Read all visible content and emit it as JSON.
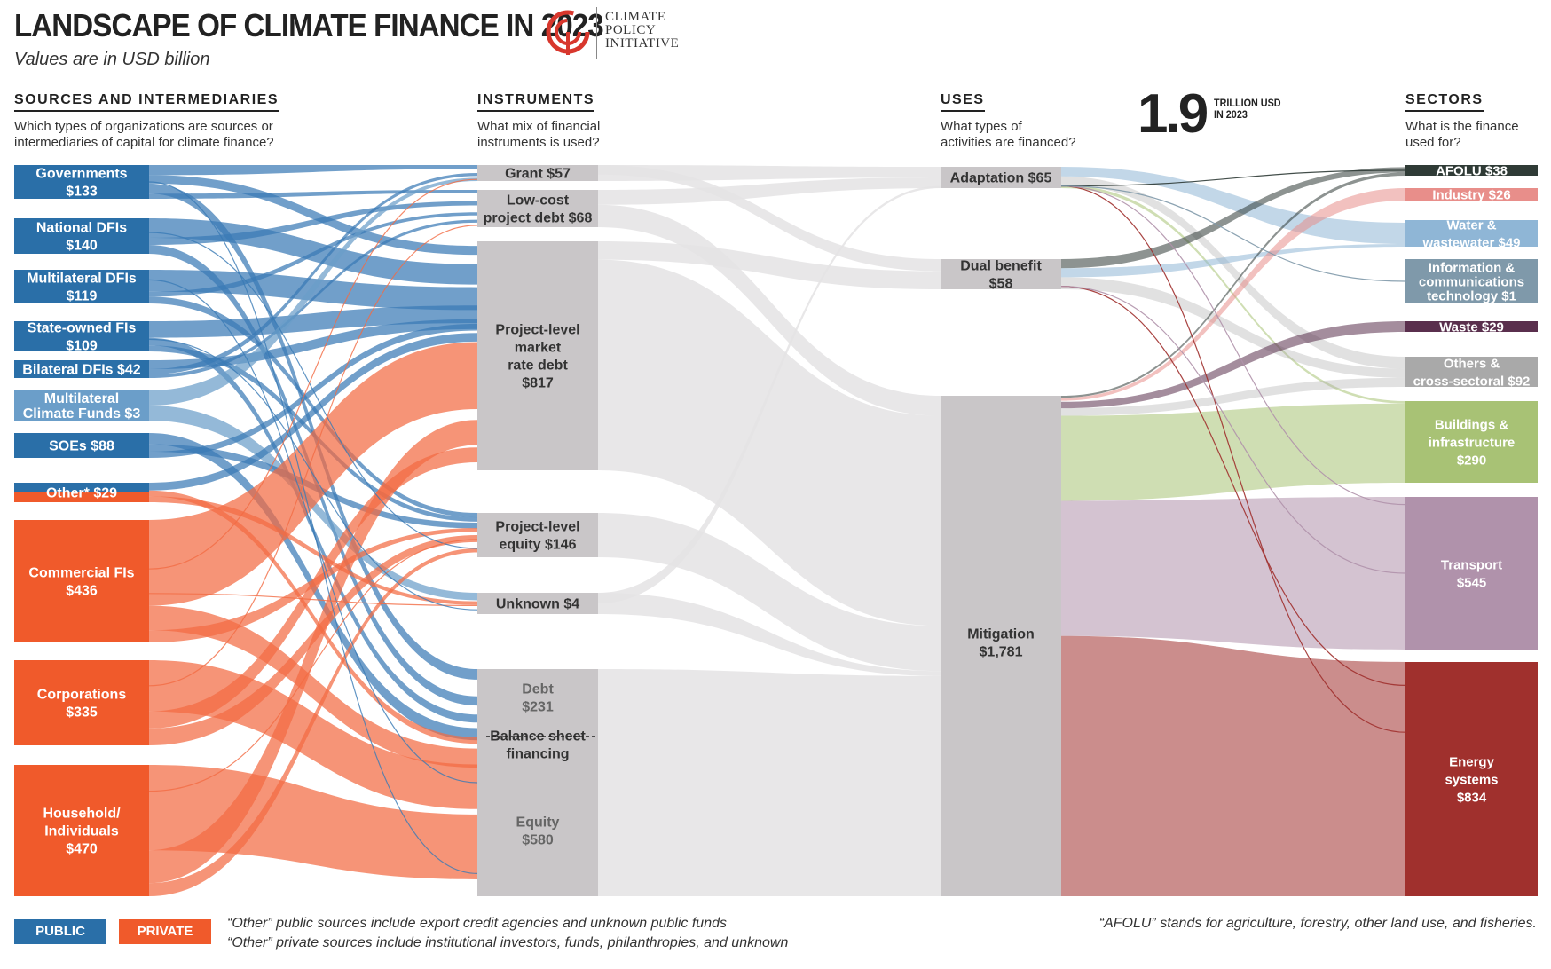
{
  "header": {
    "title": "LANDSCAPE OF CLIMATE FINANCE IN 2023",
    "subtitle": "Values are in USD billion",
    "logo_lines": [
      "CLIMATE",
      "POLICY",
      "INITIATIVE"
    ]
  },
  "big_stat": {
    "value": "1.9",
    "unit_line1": "TRILLION USD",
    "unit_line2": "IN 2023"
  },
  "columns": {
    "sources": {
      "heading": "SOURCES AND INTERMEDIARIES",
      "question_line1": "Which types of organizations are sources or",
      "question_line2": "intermediaries of capital for climate finance?"
    },
    "instruments": {
      "heading": "INSTRUMENTS",
      "question_line1": "What mix of financial",
      "question_line2": "instruments is used?"
    },
    "uses": {
      "heading": "USES",
      "question_line1": "What types of",
      "question_line2": "activities are financed?"
    },
    "sectors": {
      "heading": "SECTORS",
      "question_line1": "What is the finance",
      "question_line2": "used for?"
    }
  },
  "colors": {
    "public": "#2a6fa8",
    "public_light": "#6b9ec9",
    "private": "#f05a2b",
    "instrument": "#c9c6c8",
    "flow_public": "#3a7ab5",
    "flow_private": "#f26b43",
    "flow_grey": "#e4e3e4"
  },
  "chart_data": {
    "type": "sankey",
    "unit": "USD billion",
    "sources": [
      {
        "id": "gov",
        "lines": [
          "Governments",
          "$133"
        ],
        "value": 133,
        "group": "public"
      },
      {
        "id": "ndfi",
        "lines": [
          "National DFIs",
          "$140"
        ],
        "value": 140,
        "group": "public"
      },
      {
        "id": "mdfi",
        "lines": [
          "Multilateral DFIs",
          "$119"
        ],
        "value": 119,
        "group": "public"
      },
      {
        "id": "sofi",
        "lines": [
          "State-owned FIs",
          "$109"
        ],
        "value": 109,
        "group": "public"
      },
      {
        "id": "bdfi",
        "lines": [
          "Bilateral DFIs $42"
        ],
        "value": 42,
        "group": "public"
      },
      {
        "id": "mcf",
        "lines": [
          "Multilateral",
          "Climate Funds $3"
        ],
        "value": 3,
        "group": "public"
      },
      {
        "id": "soe",
        "lines": [
          "SOEs $88"
        ],
        "value": 88,
        "group": "public"
      },
      {
        "id": "other",
        "lines": [
          "Other* $29"
        ],
        "value": 29,
        "group": "mixed"
      },
      {
        "id": "cfi",
        "lines": [
          "Commercial FIs",
          "$436"
        ],
        "value": 436,
        "group": "private"
      },
      {
        "id": "corp",
        "lines": [
          "Corporations",
          "$335"
        ],
        "value": 335,
        "group": "private"
      },
      {
        "id": "hh",
        "lines": [
          "Household/",
          "Individuals",
          "$470"
        ],
        "value": 470,
        "group": "private"
      }
    ],
    "instruments": [
      {
        "id": "grant",
        "lines": [
          "Grant $57"
        ],
        "value": 57
      },
      {
        "id": "lowcost",
        "lines": [
          "Low-cost",
          "project debt $68"
        ],
        "value": 68
      },
      {
        "id": "plmrd",
        "lines": [
          "Project-level",
          "market",
          "rate debt",
          "$817"
        ],
        "value": 817
      },
      {
        "id": "ple",
        "lines": [
          "Project-level",
          "equity $146"
        ],
        "value": 146
      },
      {
        "id": "unknown",
        "lines": [
          "Unknown $4"
        ],
        "value": 4
      },
      {
        "id": "bsf",
        "lines": [
          "Debt",
          "$231",
          "Balance sheet",
          "financing",
          "Equity",
          "$580"
        ],
        "value": 811
      }
    ],
    "uses": [
      {
        "id": "adapt",
        "lines": [
          "Adaptation $65"
        ],
        "value": 65
      },
      {
        "id": "dual",
        "lines": [
          "Dual benefit",
          "$58"
        ],
        "value": 58
      },
      {
        "id": "mitig",
        "lines": [
          "Mitigation",
          "$1,781"
        ],
        "value": 1781
      }
    ],
    "sectors": [
      {
        "id": "afolu",
        "lines": [
          "AFOLU $38"
        ],
        "value": 38,
        "color": "#2f3b36"
      },
      {
        "id": "industry",
        "lines": [
          "Industry $26"
        ],
        "value": 26,
        "color": "#e88e8a"
      },
      {
        "id": "water",
        "lines": [
          "Water &",
          "wastewater $49"
        ],
        "value": 49,
        "color": "#8fb6d6"
      },
      {
        "id": "ict",
        "lines": [
          "Information &",
          "communications",
          "technology $1"
        ],
        "value": 1,
        "color": "#7f99aa"
      },
      {
        "id": "waste",
        "lines": [
          "Waste $29"
        ],
        "value": 29,
        "color": "#5a2f4d"
      },
      {
        "id": "others",
        "lines": [
          "Others &",
          "cross-sectoral $92"
        ],
        "value": 92,
        "color": "#a9a9a9"
      },
      {
        "id": "buildings",
        "lines": [
          "Buildings &",
          "infrastructure",
          "$290"
        ],
        "value": 290,
        "color": "#a8c275"
      },
      {
        "id": "transport",
        "lines": [
          "Transport",
          "$545"
        ],
        "value": 545,
        "color": "#b092ab"
      },
      {
        "id": "energy",
        "lines": [
          "Energy",
          "systems",
          "$834"
        ],
        "value": 834,
        "color": "#a0302d"
      }
    ]
  },
  "legend": {
    "public_label": "PUBLIC",
    "private_label": "PRIVATE"
  },
  "notes": {
    "other_public": "“Other” public sources include export credit agencies and unknown public funds",
    "other_private": "“Other” private sources include institutional investors, funds, philanthropies, and unknown",
    "afolu": "“AFOLU” stands for agriculture, forestry, other land use, and fisheries."
  }
}
